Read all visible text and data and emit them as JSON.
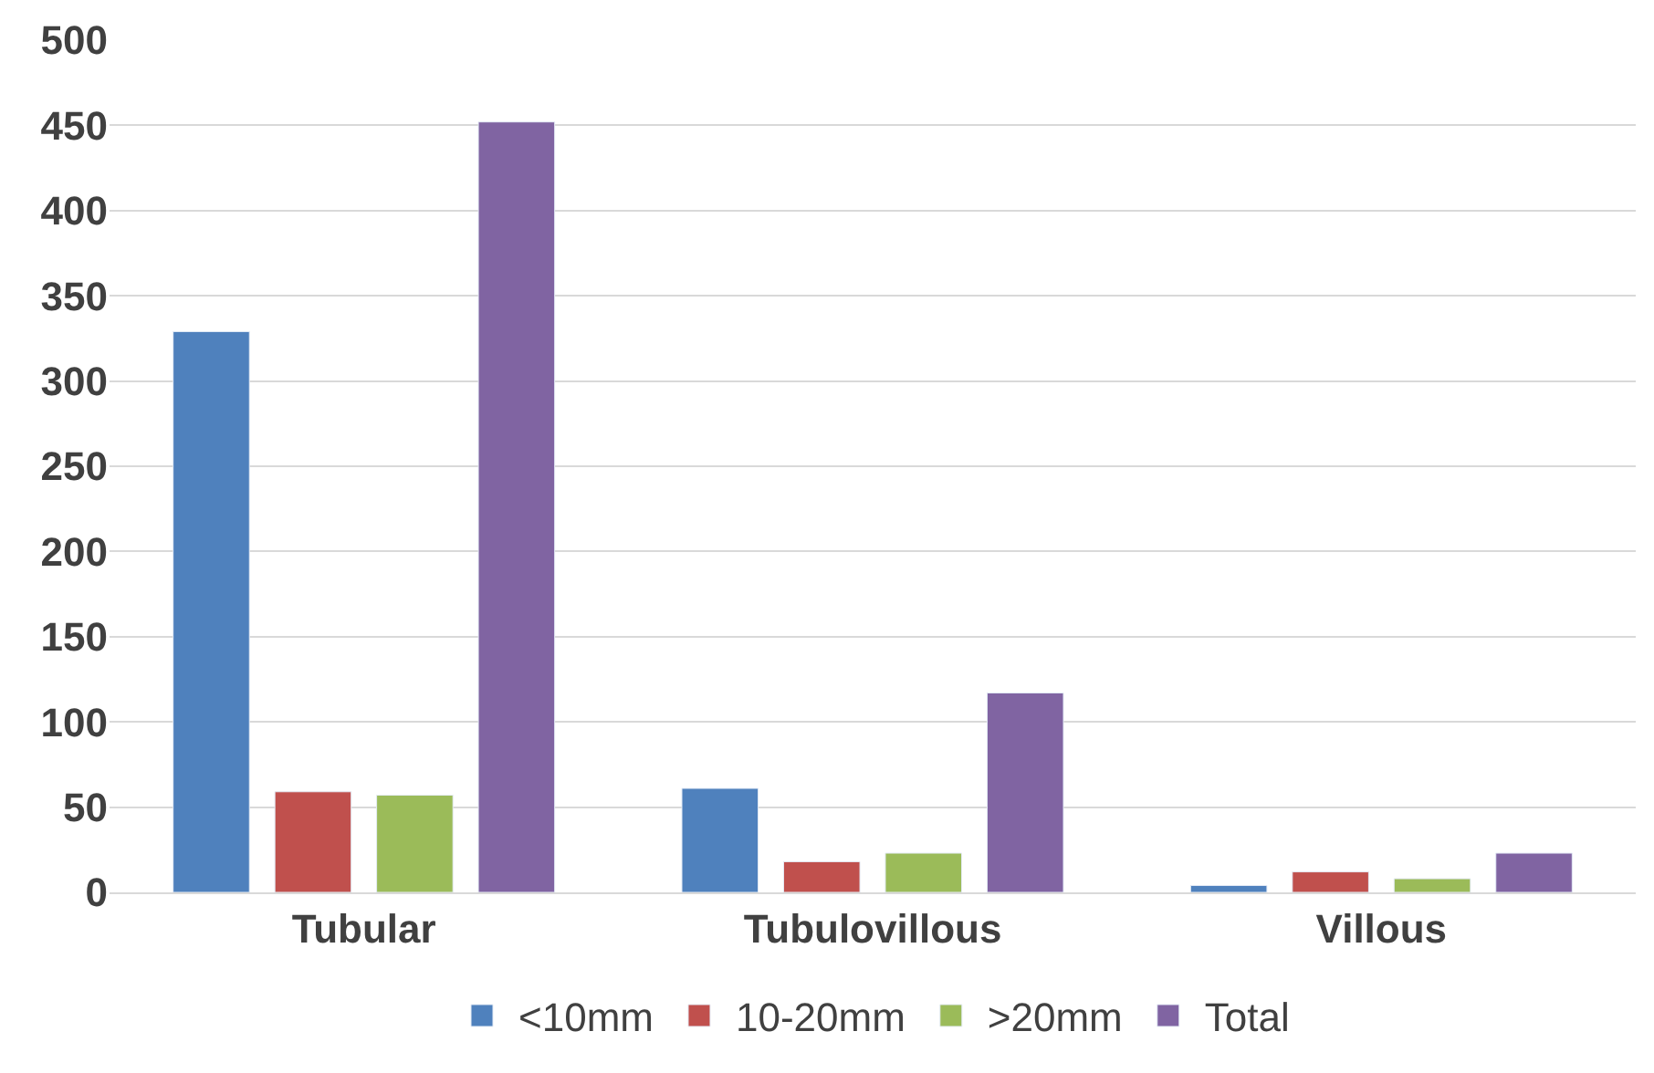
{
  "chart_data": {
    "type": "bar",
    "categories": [
      "Tubular",
      "Tubulovillous",
      "Villous"
    ],
    "series": [
      {
        "name": "<10mm",
        "color": "#4f81bd",
        "values": [
          329,
          61,
          4
        ]
      },
      {
        "name": "10-20mm",
        "color": "#c0504d",
        "values": [
          59,
          18,
          12
        ]
      },
      {
        "name": ">20mm",
        "color": "#9bbb59",
        "values": [
          57,
          23,
          8
        ]
      },
      {
        "name": "Total",
        "color": "#8064a2",
        "values": [
          452,
          117,
          23
        ]
      }
    ],
    "ylim": [
      0,
      500
    ],
    "yticks": [
      0,
      50,
      100,
      150,
      200,
      250,
      300,
      350,
      400,
      450,
      500
    ],
    "grid": "y",
    "legend": "bottom"
  }
}
